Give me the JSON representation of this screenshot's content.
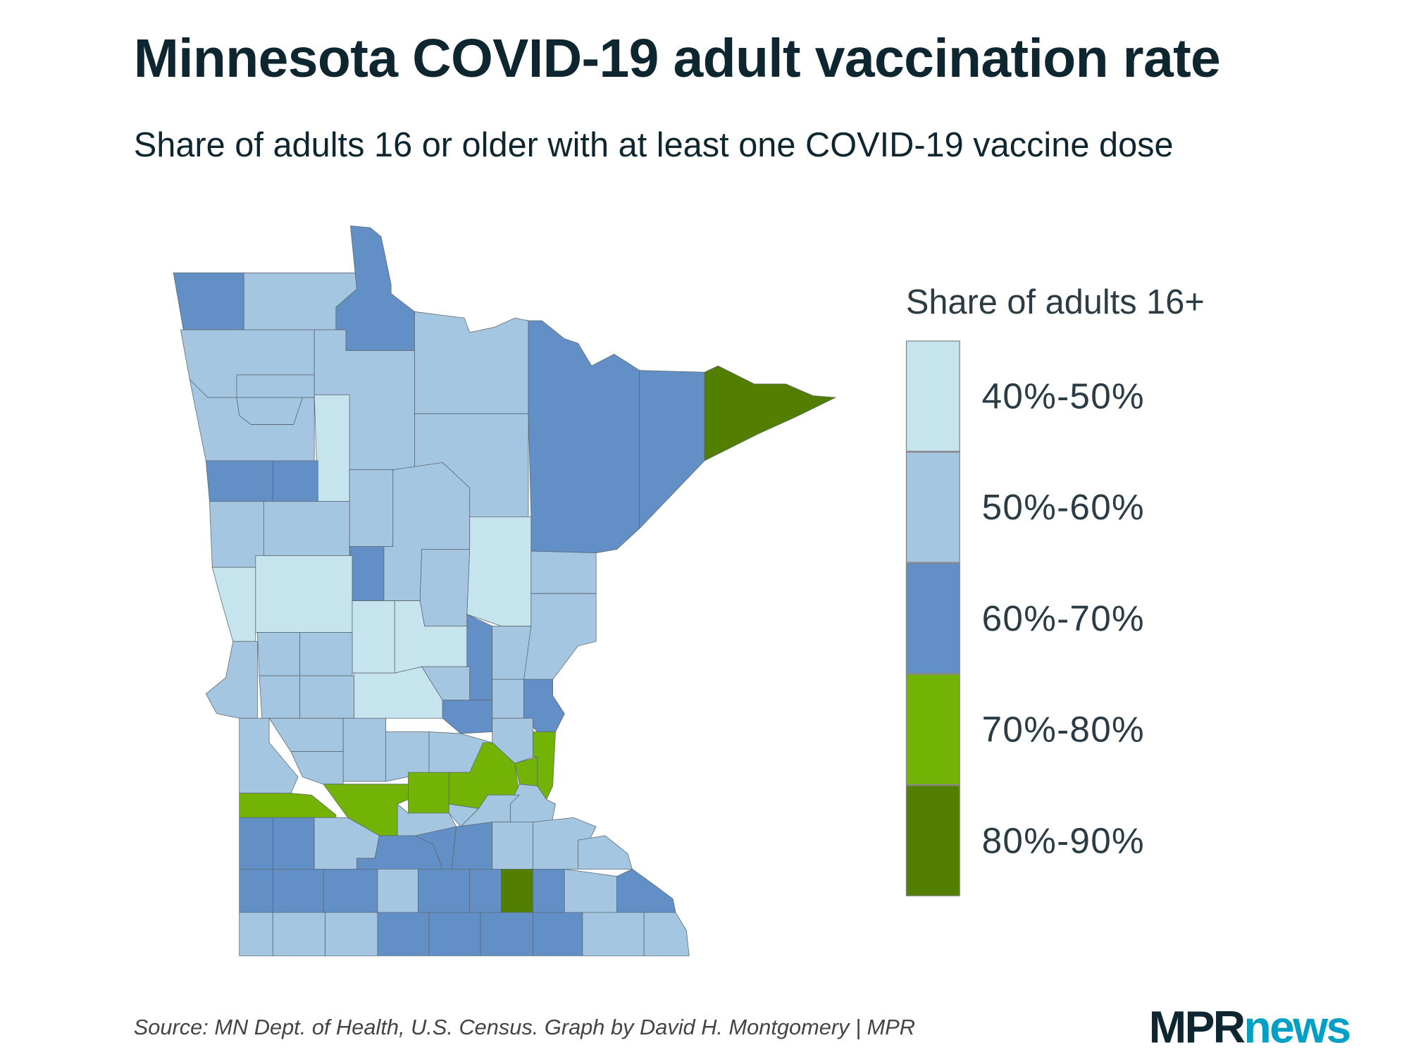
{
  "title": "Minnesota COVID-19 adult vaccination rate",
  "subtitle": "Share of adults 16 or older with at least one COVID-19 vaccine dose",
  "chart_data": {
    "type": "choropleth",
    "legend": {
      "title": "Share of adults 16+",
      "placement": "right",
      "bins": [
        {
          "label": "40%-50%",
          "color": "#c6e4ee"
        },
        {
          "label": "50%-60%",
          "color": "#a5c6e0"
        },
        {
          "label": "60%-70%",
          "color": "#6290c6"
        },
        {
          "label": "70%-80%",
          "color": "#72b306"
        },
        {
          "label": "80%-90%",
          "color": "#527f00"
        }
      ]
    },
    "county_bins": [
      2,
      1,
      2,
      1,
      2,
      2,
      4,
      1,
      1,
      1,
      1,
      1,
      0,
      2,
      2,
      1,
      1,
      1,
      1,
      1,
      2,
      0,
      1,
      1,
      1,
      0,
      0,
      0,
      0,
      2,
      1,
      1,
      1,
      1,
      1,
      1,
      0,
      1,
      1,
      2,
      2,
      1,
      1,
      1,
      1,
      1,
      1,
      1,
      3,
      3,
      3,
      3,
      3,
      3,
      1,
      1,
      1,
      1,
      2,
      2,
      1,
      2,
      2,
      2,
      1,
      1,
      1,
      2,
      2,
      2,
      1,
      2,
      2,
      4,
      2,
      1,
      2,
      1,
      1,
      1,
      2,
      2,
      2,
      2
    ]
  },
  "source": "Source: MN Dept. of Health, U.S. Census. Graph by David H. Montgomery | MPR",
  "logo": {
    "part1": "MPR",
    "part2": "news"
  }
}
